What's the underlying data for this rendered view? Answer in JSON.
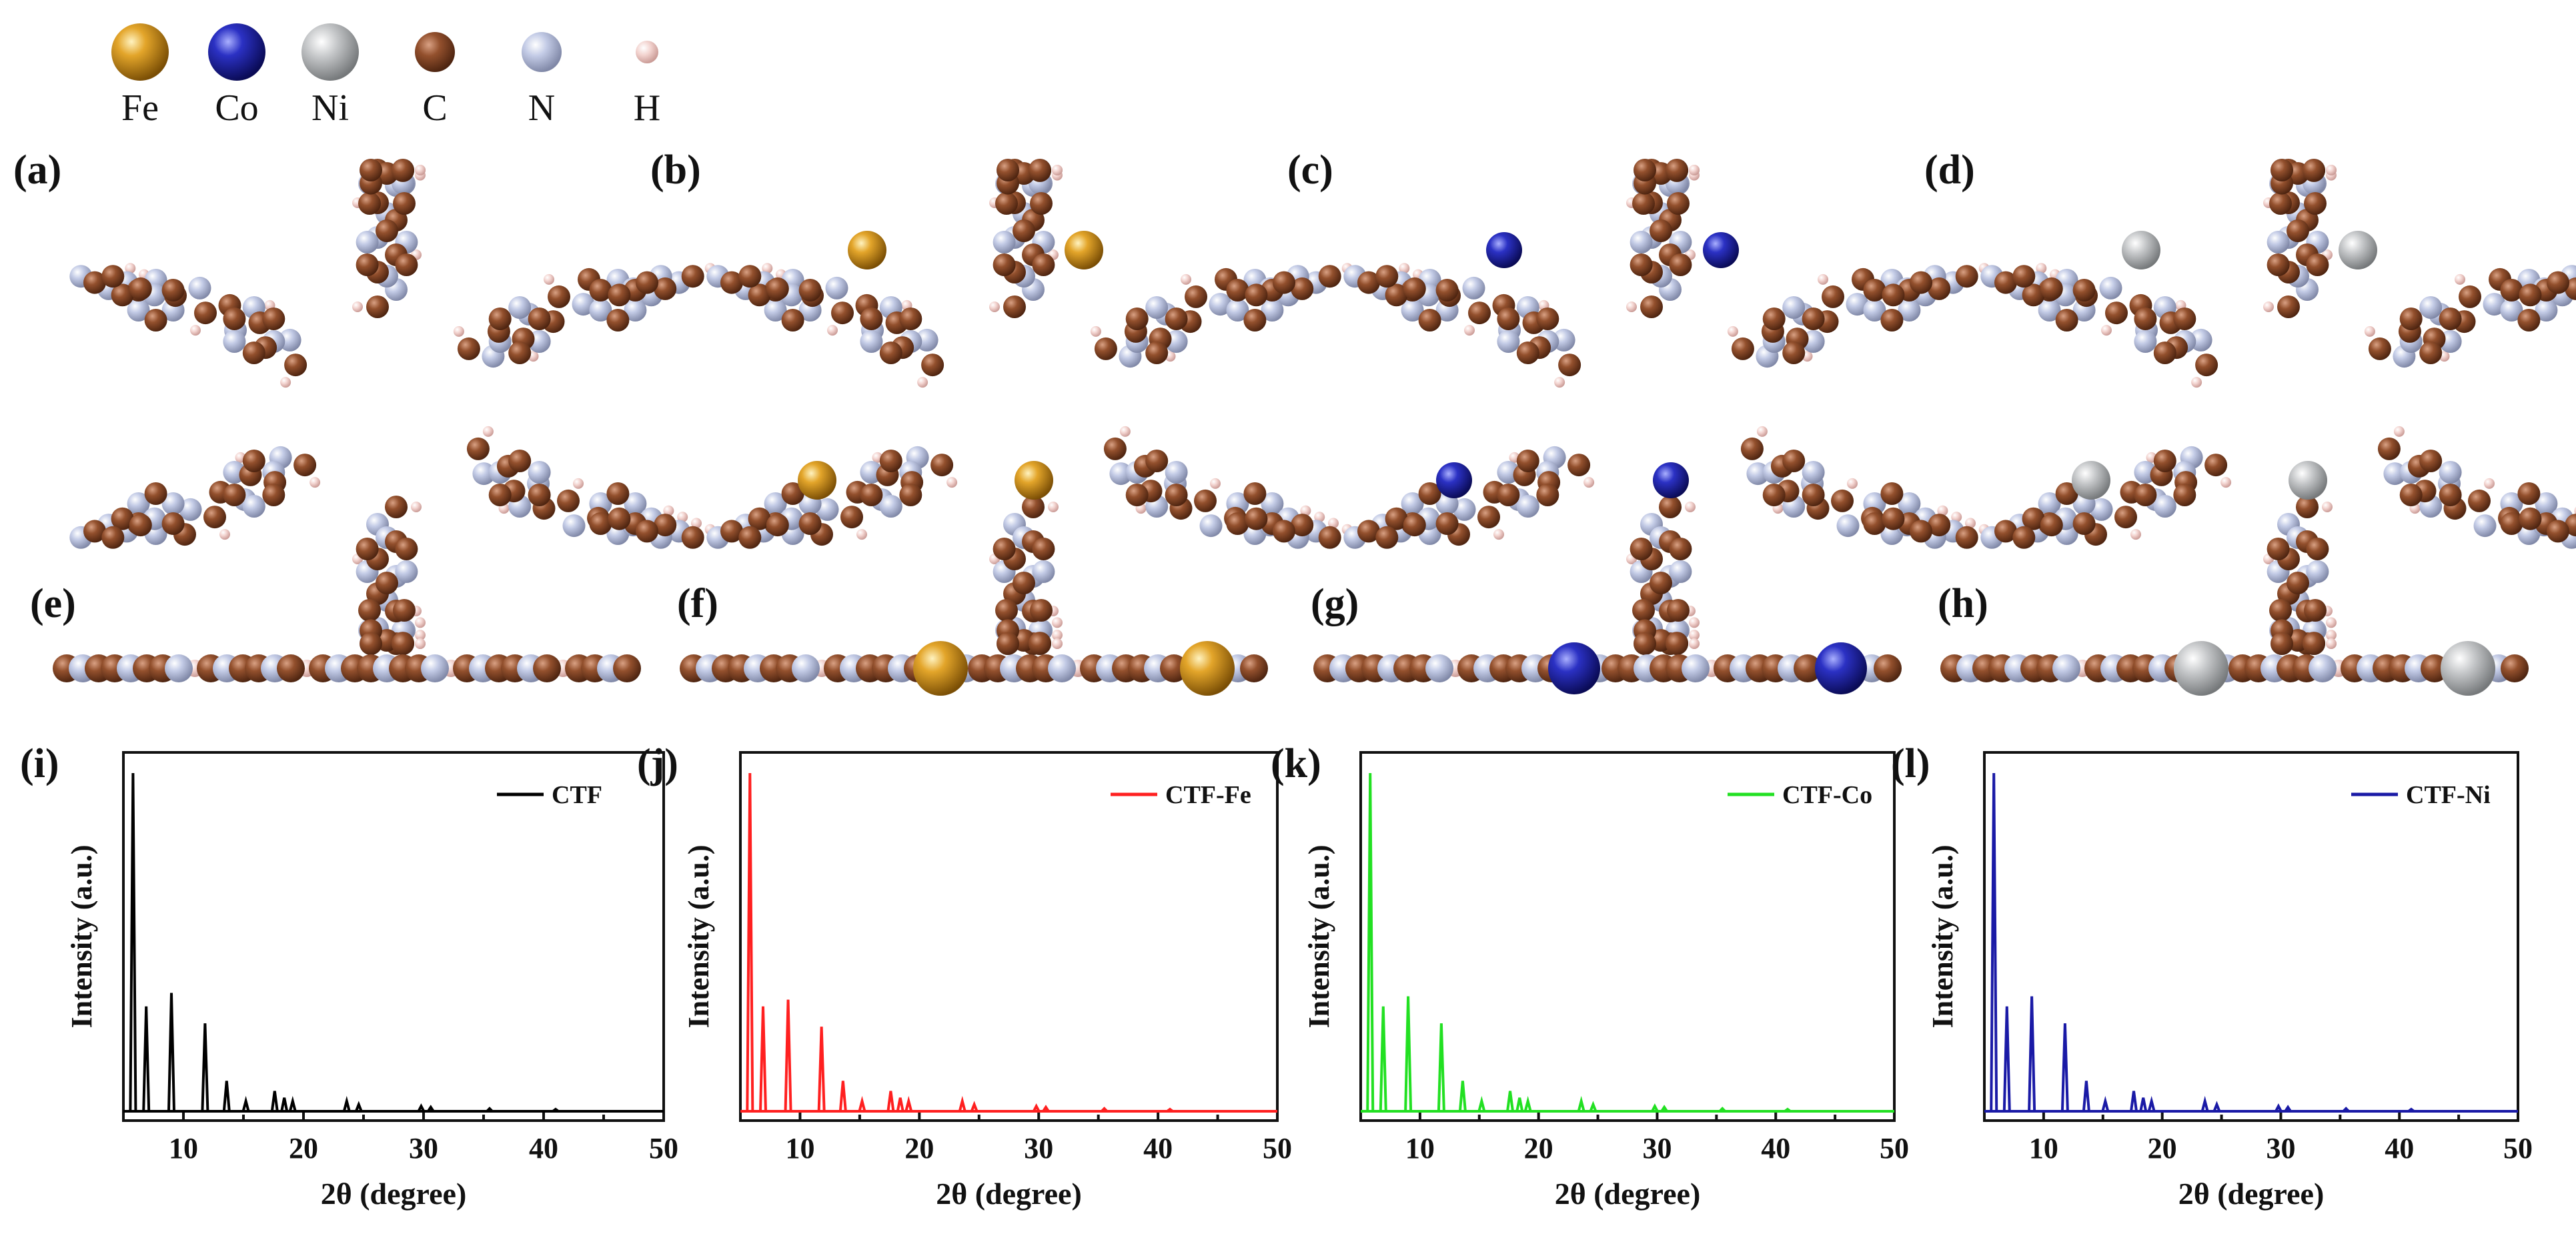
{
  "legend": {
    "items": [
      {
        "symbol": "Fe",
        "color": "#c98a12"
      },
      {
        "symbol": "Co",
        "color": "#1c1f9c"
      },
      {
        "symbol": "Ni",
        "color": "#b9bcbe"
      },
      {
        "symbol": "C",
        "color": "#8a4a2a"
      },
      {
        "symbol": "N",
        "color": "#b7c0dc"
      },
      {
        "symbol": "H",
        "color": "#f1cfcb"
      }
    ]
  },
  "panels": {
    "top": [
      {
        "label": "(a)",
        "metal": null
      },
      {
        "label": "(b)",
        "metal": "Fe"
      },
      {
        "label": "(c)",
        "metal": "Co"
      },
      {
        "label": "(d)",
        "metal": "Ni"
      }
    ],
    "side": [
      {
        "label": "(e)",
        "metal": null
      },
      {
        "label": "(f)",
        "metal": "Fe"
      },
      {
        "label": "(g)",
        "metal": "Co"
      },
      {
        "label": "(h)",
        "metal": "Ni"
      }
    ]
  },
  "chart_data": [
    {
      "type": "line",
      "panel": "(i)",
      "series_name": "CTF",
      "color": "#000000",
      "xlabel": "2θ (degree)",
      "ylabel": "Intensity (a.u.)",
      "xlim": [
        5,
        50
      ],
      "ylim": [
        0,
        100
      ],
      "xticks": [
        "10",
        "20",
        "30",
        "40",
        "50"
      ],
      "peaks": [
        {
          "x": 5.8,
          "y": 100
        },
        {
          "x": 6.9,
          "y": 31
        },
        {
          "x": 9.0,
          "y": 35
        },
        {
          "x": 11.8,
          "y": 26
        },
        {
          "x": 13.6,
          "y": 9
        },
        {
          "x": 15.2,
          "y": 3
        },
        {
          "x": 17.6,
          "y": 6
        },
        {
          "x": 18.4,
          "y": 4
        },
        {
          "x": 19.1,
          "y": 3
        },
        {
          "x": 23.6,
          "y": 3
        },
        {
          "x": 24.6,
          "y": 2
        },
        {
          "x": 29.8,
          "y": 1.5
        },
        {
          "x": 30.6,
          "y": 1.2
        },
        {
          "x": 35.5,
          "y": 0.8
        },
        {
          "x": 41.0,
          "y": 0.6
        }
      ]
    },
    {
      "type": "line",
      "panel": "(j)",
      "series_name": "CTF-Fe",
      "color": "#ff2020",
      "xlabel": "2θ (degree)",
      "ylabel": "Intensity (a.u.)",
      "xlim": [
        5,
        50
      ],
      "ylim": [
        0,
        100
      ],
      "xticks": [
        "10",
        "20",
        "30",
        "40",
        "50"
      ],
      "peaks": [
        {
          "x": 5.8,
          "y": 100
        },
        {
          "x": 6.9,
          "y": 31
        },
        {
          "x": 9.0,
          "y": 33
        },
        {
          "x": 11.8,
          "y": 25
        },
        {
          "x": 13.6,
          "y": 9
        },
        {
          "x": 15.2,
          "y": 3
        },
        {
          "x": 17.6,
          "y": 6
        },
        {
          "x": 18.4,
          "y": 4
        },
        {
          "x": 19.1,
          "y": 3
        },
        {
          "x": 23.6,
          "y": 3
        },
        {
          "x": 24.6,
          "y": 2
        },
        {
          "x": 29.8,
          "y": 1.5
        },
        {
          "x": 30.6,
          "y": 1.2
        },
        {
          "x": 35.5,
          "y": 0.8
        },
        {
          "x": 41.0,
          "y": 0.6
        }
      ]
    },
    {
      "type": "line",
      "panel": "(k)",
      "series_name": "CTF-Co",
      "color": "#22e022",
      "xlabel": "2θ (degree)",
      "ylabel": "Intensity (a.u.)",
      "xlim": [
        5,
        50
      ],
      "ylim": [
        0,
        100
      ],
      "xticks": [
        "10",
        "20",
        "30",
        "40",
        "50"
      ],
      "peaks": [
        {
          "x": 5.8,
          "y": 100
        },
        {
          "x": 6.9,
          "y": 31
        },
        {
          "x": 9.0,
          "y": 34
        },
        {
          "x": 11.8,
          "y": 26
        },
        {
          "x": 13.6,
          "y": 9
        },
        {
          "x": 15.2,
          "y": 3
        },
        {
          "x": 17.6,
          "y": 6
        },
        {
          "x": 18.4,
          "y": 4
        },
        {
          "x": 19.1,
          "y": 3
        },
        {
          "x": 23.6,
          "y": 3
        },
        {
          "x": 24.6,
          "y": 2
        },
        {
          "x": 29.8,
          "y": 1.5
        },
        {
          "x": 30.6,
          "y": 1.2
        },
        {
          "x": 35.5,
          "y": 0.8
        },
        {
          "x": 41.0,
          "y": 0.6
        }
      ]
    },
    {
      "type": "line",
      "panel": "(l)",
      "series_name": "CTF-Ni",
      "color": "#1a1aa6",
      "xlabel": "2θ (degree)",
      "ylabel": "Intensity (a.u.)",
      "xlim": [
        5,
        50
      ],
      "ylim": [
        0,
        100
      ],
      "xticks": [
        "10",
        "20",
        "30",
        "40",
        "50"
      ],
      "peaks": [
        {
          "x": 5.8,
          "y": 100
        },
        {
          "x": 6.9,
          "y": 31
        },
        {
          "x": 9.0,
          "y": 34
        },
        {
          "x": 11.8,
          "y": 26
        },
        {
          "x": 13.6,
          "y": 9
        },
        {
          "x": 15.2,
          "y": 3
        },
        {
          "x": 17.6,
          "y": 6
        },
        {
          "x": 18.4,
          "y": 4
        },
        {
          "x": 19.1,
          "y": 3
        },
        {
          "x": 23.6,
          "y": 3
        },
        {
          "x": 24.6,
          "y": 2
        },
        {
          "x": 29.8,
          "y": 1.5
        },
        {
          "x": 30.6,
          "y": 1.2
        },
        {
          "x": 35.5,
          "y": 0.8
        },
        {
          "x": 41.0,
          "y": 0.6
        }
      ]
    }
  ]
}
